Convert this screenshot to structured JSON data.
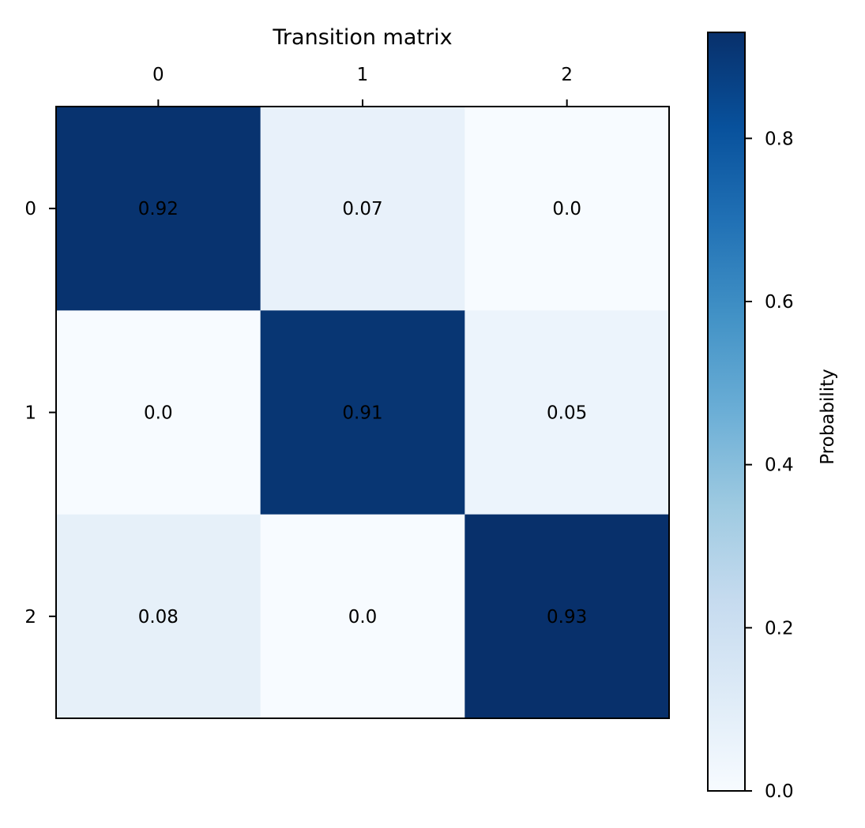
{
  "chart_data": {
    "type": "heatmap",
    "title": "Transition matrix",
    "x_ticks": [
      "0",
      "1",
      "2"
    ],
    "y_ticks": [
      "0",
      "1",
      "2"
    ],
    "values": [
      [
        0.92,
        0.07,
        0.0
      ],
      [
        0.0,
        0.91,
        0.05
      ],
      [
        0.08,
        0.0,
        0.93
      ]
    ],
    "cell_labels": [
      [
        "0.92",
        "0.07",
        "0.0"
      ],
      [
        "0.0",
        "0.91",
        "0.05"
      ],
      [
        "0.08",
        "0.0",
        "0.93"
      ]
    ],
    "colormap": "Blues",
    "x_axis_position": "top",
    "grid": false,
    "colorbar": {
      "label": "Probability",
      "range": [
        0.0,
        0.93
      ],
      "ticks": [
        0.0,
        0.2,
        0.4,
        0.6,
        0.8
      ],
      "tick_labels": [
        "0.0",
        "0.2",
        "0.4",
        "0.6",
        "0.8"
      ],
      "position": "right"
    }
  }
}
